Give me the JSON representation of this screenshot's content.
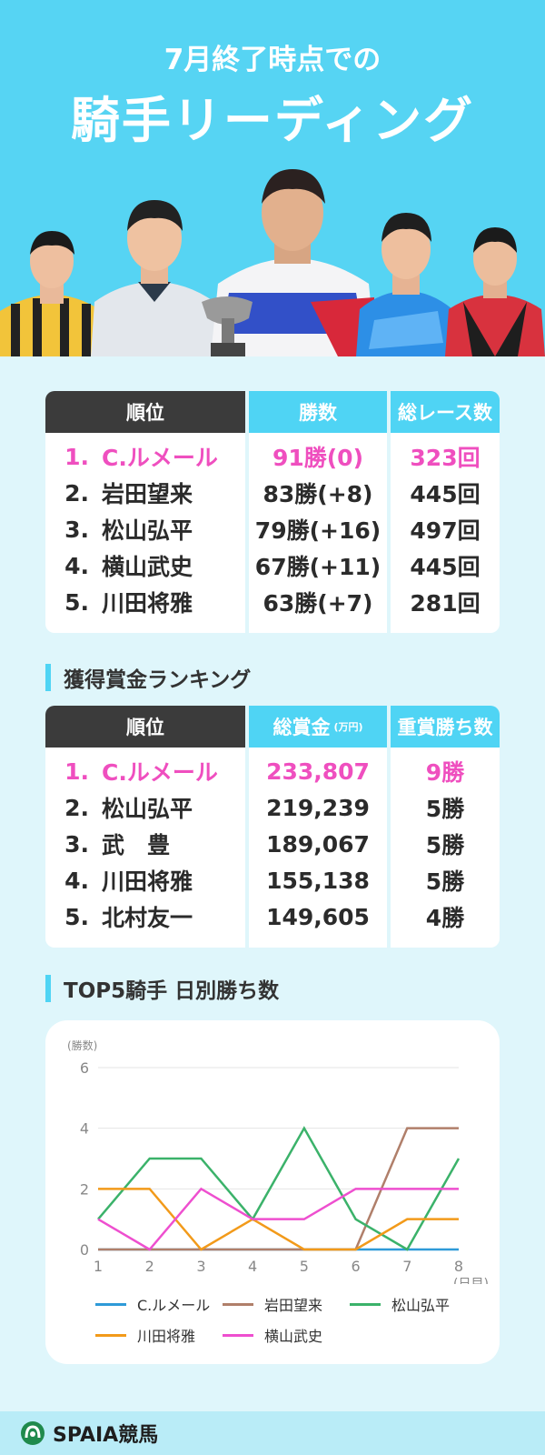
{
  "header": {
    "sub": "7月終了時点での",
    "title": "騎手リーディング"
  },
  "wins_table": {
    "headers": [
      "順位",
      "勝数",
      "総レース数"
    ],
    "rows": [
      {
        "rank": "1.",
        "name": "C.ルメール",
        "wins": "91勝(0)",
        "races": "323回",
        "highlight": true
      },
      {
        "rank": "2.",
        "name": "岩田望来",
        "wins": "83勝(+8)",
        "races": "445回",
        "highlight": false
      },
      {
        "rank": "3.",
        "name": "松山弘平",
        "wins": "79勝(+16)",
        "races": "497回",
        "highlight": false
      },
      {
        "rank": "4.",
        "name": "横山武史",
        "wins": "67勝(+11)",
        "races": "445回",
        "highlight": false
      },
      {
        "rank": "5.",
        "name": "川田将雅",
        "wins": "63勝(+7)",
        "races": "281回",
        "highlight": false
      }
    ]
  },
  "prize_section": {
    "title": "獲得賞金ランキング"
  },
  "prize_table": {
    "headers": [
      "順位",
      "総賞金",
      "重賞勝ち数"
    ],
    "unit": "(万円)",
    "rows": [
      {
        "rank": "1.",
        "name": "C.ルメール",
        "prize": "233,807",
        "grade": "9勝",
        "highlight": true
      },
      {
        "rank": "2.",
        "name": "松山弘平",
        "prize": "219,239",
        "grade": "5勝",
        "highlight": false
      },
      {
        "rank": "3.",
        "name": "武　豊",
        "prize": "189,067",
        "grade": "5勝",
        "highlight": false
      },
      {
        "rank": "4.",
        "name": "川田将雅",
        "prize": "155,138",
        "grade": "5勝",
        "highlight": false
      },
      {
        "rank": "5.",
        "name": "北村友一",
        "prize": "149,605",
        "grade": "4勝",
        "highlight": false
      }
    ]
  },
  "chart_section": {
    "title": "TOP5騎手 日別勝ち数"
  },
  "chart_data": {
    "type": "line",
    "ylabel": "(勝数)",
    "xlabel": "(日目)",
    "x": [
      1,
      2,
      3,
      4,
      5,
      6,
      7,
      8
    ],
    "ylim": [
      0,
      6
    ],
    "yticks": [
      0,
      2,
      4,
      6
    ],
    "grid": true,
    "legend_position": "bottom",
    "series": [
      {
        "name": "C.ルメール",
        "color": "#2e9ad8",
        "values": [
          0,
          0,
          0,
          0,
          0,
          0,
          0,
          0
        ]
      },
      {
        "name": "岩田望来",
        "color": "#b07f6a",
        "values": [
          0,
          0,
          0,
          0,
          0,
          0,
          4,
          4
        ]
      },
      {
        "name": "松山弘平",
        "color": "#3bb26a",
        "values": [
          1,
          3,
          3,
          1,
          4,
          1,
          0,
          3
        ]
      },
      {
        "name": "川田将雅",
        "color": "#f29a1a",
        "values": [
          2,
          2,
          0,
          1,
          0,
          0,
          1,
          1
        ]
      },
      {
        "name": "横山武史",
        "color": "#ee4fcf",
        "values": [
          1,
          0,
          2,
          1,
          1,
          2,
          2,
          2
        ]
      }
    ]
  },
  "footer": {
    "logo": "SPAIA競馬"
  }
}
